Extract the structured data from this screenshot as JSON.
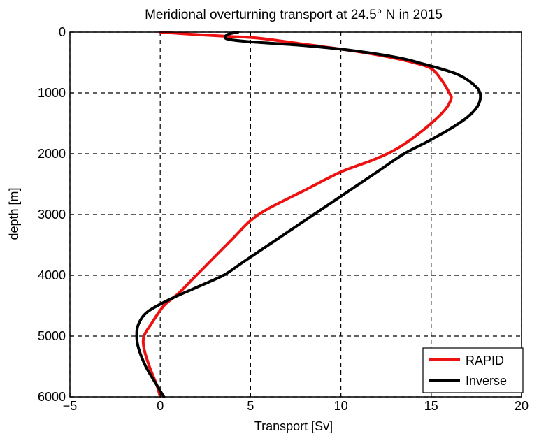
{
  "chart_data": {
    "type": "line",
    "title": "Meridional overturning transport at 24.5° N in 2015",
    "xlabel": "Transport [Sv]",
    "ylabel": "depth [m]",
    "xlim": [
      -5,
      20
    ],
    "ylim": [
      0,
      6000
    ],
    "y_reversed": true,
    "grid": true,
    "grid_style": "dashed",
    "legend_position": "bottom-right",
    "x_ticks": [
      "−5",
      "0",
      "5",
      "10",
      "15",
      "20"
    ],
    "y_ticks": [
      "0",
      "1000",
      "2000",
      "3000",
      "4000",
      "5000",
      "6000"
    ],
    "series": [
      {
        "name": "RAPID",
        "color": "#ee1111",
        "points": [
          [
            0,
            0
          ],
          [
            2.0,
            40
          ],
          [
            3.8,
            70
          ],
          [
            5.5,
            100
          ],
          [
            8.0,
            200
          ],
          [
            10.5,
            300
          ],
          [
            12.5,
            400
          ],
          [
            14.0,
            500
          ],
          [
            15.0,
            600
          ],
          [
            15.6,
            800
          ],
          [
            16.0,
            1000
          ],
          [
            16.1,
            1100
          ],
          [
            15.7,
            1300
          ],
          [
            14.6,
            1600
          ],
          [
            13.2,
            1900
          ],
          [
            11.8,
            2100
          ],
          [
            10.0,
            2300
          ],
          [
            8.0,
            2600
          ],
          [
            6.0,
            2900
          ],
          [
            5.0,
            3100
          ],
          [
            4.0,
            3400
          ],
          [
            3.0,
            3700
          ],
          [
            2.0,
            4000
          ],
          [
            1.0,
            4300
          ],
          [
            0.2,
            4500
          ],
          [
            -0.5,
            4800
          ],
          [
            -0.9,
            5000
          ],
          [
            -0.9,
            5200
          ],
          [
            -0.6,
            5500
          ],
          [
            -0.2,
            5800
          ],
          [
            0,
            6000
          ]
        ]
      },
      {
        "name": "Inverse",
        "color": "#000000",
        "points": [
          [
            4.3,
            0
          ],
          [
            3.8,
            30
          ],
          [
            3.6,
            80
          ],
          [
            3.8,
            120
          ],
          [
            5.0,
            160
          ],
          [
            7.5,
            210
          ],
          [
            10.0,
            280
          ],
          [
            12.0,
            360
          ],
          [
            13.5,
            440
          ],
          [
            14.5,
            520
          ],
          [
            15.5,
            600
          ],
          [
            16.5,
            700
          ],
          [
            17.3,
            850
          ],
          [
            17.7,
            1000
          ],
          [
            17.6,
            1200
          ],
          [
            17.0,
            1400
          ],
          [
            16.0,
            1600
          ],
          [
            14.8,
            1800
          ],
          [
            13.5,
            2000
          ],
          [
            12.0,
            2300
          ],
          [
            10.5,
            2600
          ],
          [
            9.5,
            2800
          ],
          [
            8.0,
            3100
          ],
          [
            6.5,
            3400
          ],
          [
            5.5,
            3600
          ],
          [
            4.5,
            3800
          ],
          [
            3.5,
            4000
          ],
          [
            2.0,
            4200
          ],
          [
            0.5,
            4400
          ],
          [
            -0.7,
            4600
          ],
          [
            -1.2,
            4800
          ],
          [
            -1.3,
            5000
          ],
          [
            -1.2,
            5200
          ],
          [
            -0.8,
            5500
          ],
          [
            -0.2,
            5800
          ],
          [
            0.2,
            6000
          ]
        ]
      }
    ]
  }
}
